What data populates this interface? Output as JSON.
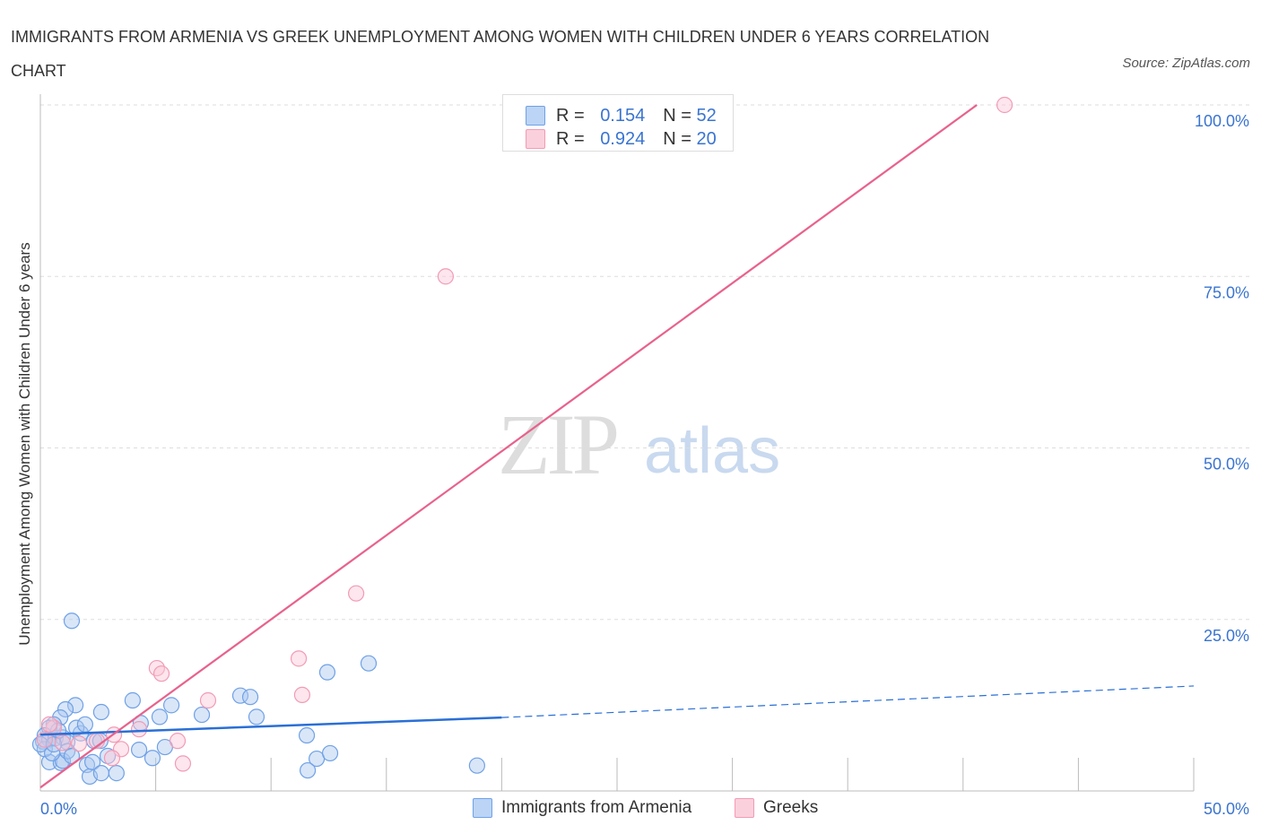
{
  "title": "IMMIGRANTS FROM ARMENIA VS GREEK UNEMPLOYMENT AMONG WOMEN WITH CHILDREN UNDER 6 YEARS CORRELATION CHART",
  "source": "Source: ZipAtlas.com",
  "watermark": {
    "zip": "ZIP",
    "atlas": "atlas"
  },
  "legend": {
    "rows": [
      {
        "r_label": "R =",
        "r": "0.154",
        "n_label": "N =",
        "n": "52"
      },
      {
        "r_label": "R =",
        "r": "0.924",
        "n_label": "N =",
        "n": "20"
      }
    ]
  },
  "chart_data": {
    "type": "scatter",
    "title": "IMMIGRANTS FROM ARMENIA VS GREEK UNEMPLOYMENT AMONG WOMEN WITH CHILDREN UNDER 6 YEARS CORRELATION CHART",
    "xlabel": "",
    "ylabel": "Unemployment Among Women with Children Under 6 years",
    "xlim": [
      0,
      50
    ],
    "ylim": [
      0,
      100
    ],
    "x_tick_labels": [
      "0.0%",
      "50.0%"
    ],
    "y_ticks": [
      25,
      50,
      75,
      100
    ],
    "y_tick_labels": [
      "25.0%",
      "50.0%",
      "75.0%",
      "100.0%"
    ],
    "legend_position": "bottom",
    "series": [
      {
        "name": "Immigrants from Armenia",
        "color": "#6fa1e6",
        "line_color": "#2a6fd6",
        "R": 0.154,
        "N": 52,
        "trend": {
          "x0": 0,
          "y0": 8.2,
          "x1": 20,
          "y1": 10.7,
          "x_end": 50,
          "y_end": 15.3
        },
        "points": [
          [
            1.36,
            24.8
          ],
          [
            1.52,
            12.5
          ],
          [
            1.09,
            11.9
          ],
          [
            0.86,
            10.7
          ],
          [
            0.58,
            9.7
          ],
          [
            0.39,
            9.2
          ],
          [
            0.19,
            8.1
          ],
          [
            0.12,
            7.2
          ],
          [
            0.39,
            7.5
          ],
          [
            0.66,
            7.7
          ],
          [
            0.97,
            7.8
          ],
          [
            1.17,
            7.1
          ],
          [
            1.75,
            8.4
          ],
          [
            2.33,
            7.3
          ],
          [
            2.64,
            11.5
          ],
          [
            4.0,
            13.2
          ],
          [
            4.35,
            9.9
          ],
          [
            5.17,
            10.8
          ],
          [
            5.68,
            12.5
          ],
          [
            7.0,
            11.1
          ],
          [
            8.67,
            13.9
          ],
          [
            9.1,
            13.7
          ],
          [
            9.37,
            10.8
          ],
          [
            4.28,
            6.0
          ],
          [
            5.4,
            6.4
          ],
          [
            4.86,
            4.8
          ],
          [
            12.44,
            17.3
          ],
          [
            14.23,
            18.6
          ],
          [
            11.55,
            8.1
          ],
          [
            0.39,
            4.2
          ],
          [
            0.89,
            4.1
          ],
          [
            0.97,
            4.4
          ],
          [
            2.02,
            3.8
          ],
          [
            2.14,
            2.1
          ],
          [
            2.26,
            4.2
          ],
          [
            2.64,
            2.6
          ],
          [
            3.3,
            2.6
          ],
          [
            2.92,
            5.1
          ],
          [
            2.6,
            7.3
          ],
          [
            11.98,
            4.7
          ],
          [
            12.56,
            5.5
          ],
          [
            11.59,
            3.0
          ],
          [
            18.93,
            3.7
          ],
          [
            1.56,
            9.2
          ],
          [
            1.94,
            9.7
          ],
          [
            0.19,
            6.1
          ],
          [
            0.51,
            5.5
          ],
          [
            1.17,
            5.8
          ],
          [
            0.78,
            8.8
          ],
          [
            0,
            6.8
          ],
          [
            0.58,
            6.8
          ],
          [
            1.36,
            5.1
          ]
        ]
      },
      {
        "name": "Greeks",
        "color": "#f29bb5",
        "line_color": "#e8628c",
        "R": 0.924,
        "N": 20,
        "trend": {
          "x0": 0,
          "y0": 0.5,
          "x1": 40.6,
          "y1": 100
        },
        "points": [
          [
            41.8,
            100
          ],
          [
            17.57,
            75.0
          ],
          [
            13.69,
            28.8
          ],
          [
            11.2,
            19.3
          ],
          [
            11.35,
            14.0
          ],
          [
            5.05,
            17.9
          ],
          [
            5.25,
            17.1
          ],
          [
            7.27,
            13.2
          ],
          [
            5.95,
            7.3
          ],
          [
            6.18,
            4.0
          ],
          [
            4.28,
            9.0
          ],
          [
            3.5,
            6.1
          ],
          [
            3.11,
            4.8
          ],
          [
            3.19,
            8.2
          ],
          [
            2.45,
            7.3
          ],
          [
            1.67,
            6.9
          ],
          [
            0.58,
            9.2
          ],
          [
            0.39,
            9.7
          ],
          [
            0.97,
            7.0
          ],
          [
            0.19,
            7.5
          ]
        ]
      }
    ]
  }
}
